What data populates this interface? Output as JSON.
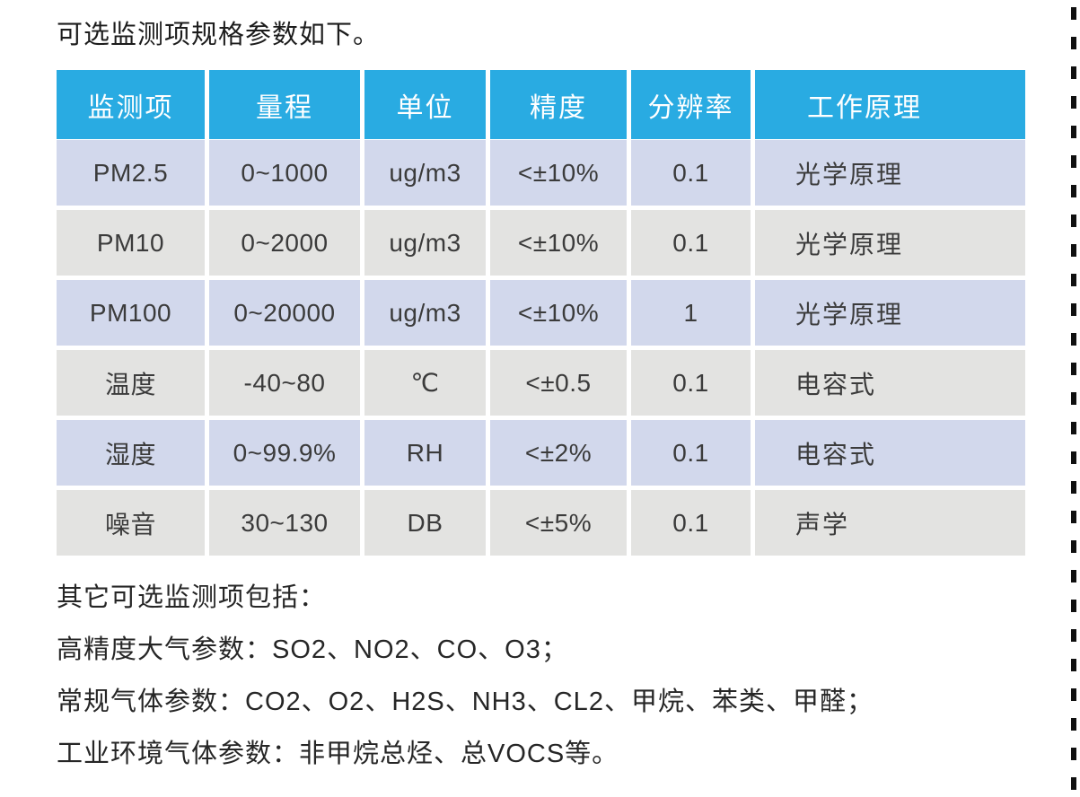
{
  "page": {
    "title": "可选监测项规格参数如下。"
  },
  "table": {
    "headers": [
      "监测项",
      "量程",
      "单位",
      "精度",
      "分辨率",
      "工作原理"
    ],
    "rows": [
      [
        "PM2.5",
        "0~1000",
        "ug/m3",
        "<±10%",
        "0.1",
        "光学原理"
      ],
      [
        "PM10",
        "0~2000",
        "ug/m3",
        "<±10%",
        "0.1",
        "光学原理"
      ],
      [
        "PM100",
        "0~20000",
        "ug/m3",
        "<±10%",
        "1",
        "光学原理"
      ],
      [
        "温度",
        "-40~80",
        "℃",
        "<±0.5",
        "0.1",
        "电容式"
      ],
      [
        "湿度",
        "0~99.9%",
        "RH",
        "<±2%",
        "0.1",
        "电容式"
      ],
      [
        "噪音",
        "30~130",
        "DB",
        "<±5%",
        "0.1",
        "声学"
      ]
    ]
  },
  "notes": {
    "heading": "其它可选监测项包括：",
    "lines": [
      "高精度大气参数：SO2、NO2、CO、O3；",
      "常规气体参数：CO2、O2、H2S、NH3、CL2、甲烷、苯类、甲醛；",
      "工业环境气体参数：非甲烷总烃、总VOCS等。"
    ]
  },
  "colors": {
    "header_bg": "#29abe2",
    "header_text": "#ffffff",
    "row_alt_blue": "#d2d8ec",
    "row_alt_gray": "#e3e3e1",
    "body_text": "#3b3b3b",
    "dash_line": "#101010"
  }
}
